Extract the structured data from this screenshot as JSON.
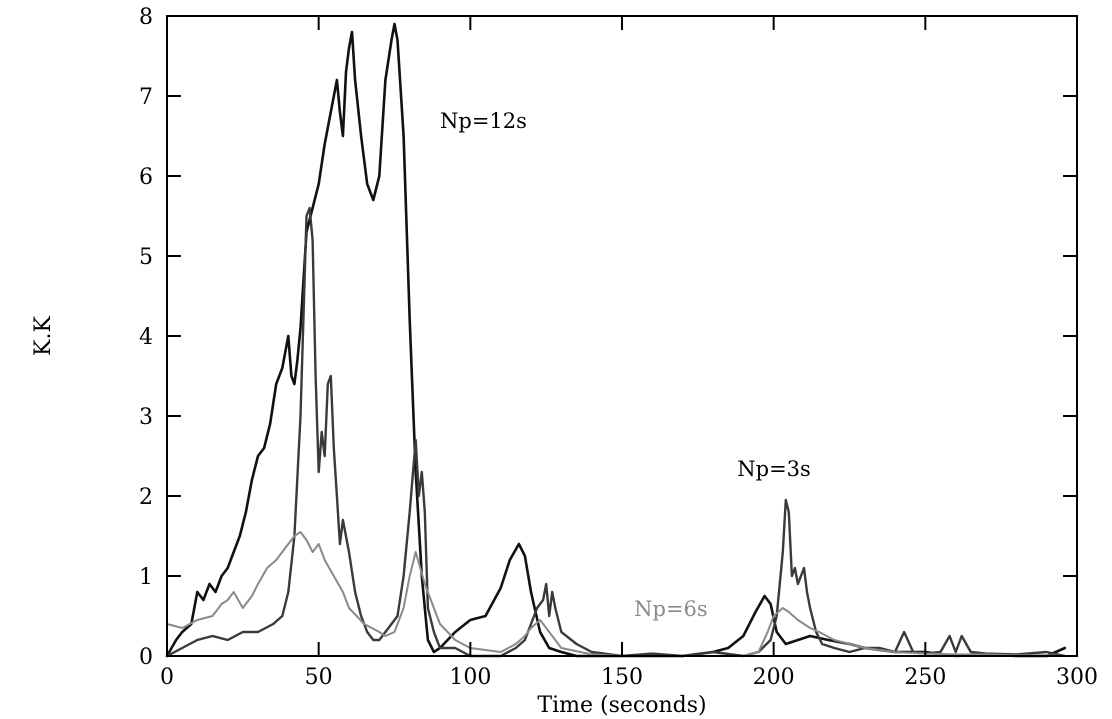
{
  "chart_data": {
    "type": "line",
    "title": "",
    "xlabel": "Time (seconds)",
    "ylabel": "K.K",
    "xlim": [
      0,
      300
    ],
    "ylim": [
      0,
      8
    ],
    "x_ticks": [
      0,
      50,
      100,
      150,
      200,
      250,
      300
    ],
    "y_ticks": [
      0,
      1,
      2,
      3,
      4,
      5,
      6,
      7,
      8
    ],
    "grid": false,
    "legend": "none",
    "annotations": [
      {
        "text": "Np=12s",
        "x": 90,
        "y": 6.6,
        "color": "#000000"
      },
      {
        "text": "Np=3s",
        "x": 188,
        "y": 2.25,
        "color": "#000000"
      },
      {
        "text": "Np=6s",
        "x": 154,
        "y": 0.5,
        "color": "#8a8a8a"
      }
    ],
    "series": [
      {
        "color": "#111111",
        "stroke_width": 2.6,
        "x": [
          0,
          3,
          5,
          8,
          10,
          12,
          14,
          16,
          18,
          20,
          22,
          24,
          26,
          28,
          30,
          32,
          34,
          36,
          38,
          40,
          41,
          42,
          43,
          44,
          46,
          48,
          50,
          52,
          54,
          56,
          57,
          58,
          59,
          60,
          61,
          62,
          64,
          66,
          68,
          70,
          72,
          74,
          75,
          76,
          78,
          80,
          82,
          84,
          85,
          86,
          88,
          90,
          95,
          100,
          105,
          110,
          113,
          116,
          118,
          120,
          123,
          126,
          130,
          135,
          140,
          150,
          160,
          170,
          180,
          185,
          190,
          194,
          197,
          199,
          201,
          204,
          208,
          212,
          218,
          225,
          230,
          240,
          250,
          260,
          270,
          280,
          290,
          296
        ],
        "y": [
          0.0,
          0.2,
          0.3,
          0.4,
          0.8,
          0.7,
          0.9,
          0.8,
          1.0,
          1.1,
          1.3,
          1.5,
          1.8,
          2.2,
          2.5,
          2.6,
          2.9,
          3.4,
          3.6,
          4.0,
          3.5,
          3.4,
          3.7,
          4.1,
          5.3,
          5.6,
          5.9,
          6.4,
          6.8,
          7.2,
          6.8,
          6.5,
          7.3,
          7.6,
          7.8,
          7.2,
          6.5,
          5.9,
          5.7,
          6.0,
          7.2,
          7.7,
          7.9,
          7.7,
          6.5,
          4.2,
          2.3,
          1.0,
          0.6,
          0.2,
          0.05,
          0.1,
          0.3,
          0.45,
          0.5,
          0.85,
          1.2,
          1.4,
          1.25,
          0.8,
          0.3,
          0.1,
          0.05,
          0.0,
          0.0,
          0.0,
          0.0,
          0.0,
          0.05,
          0.1,
          0.25,
          0.55,
          0.75,
          0.65,
          0.3,
          0.15,
          0.2,
          0.25,
          0.2,
          0.15,
          0.1,
          0.05,
          0.05,
          0.0,
          0.02,
          0.0,
          0.0,
          0.1
        ]
      },
      {
        "color": "#3a3a3a",
        "stroke_width": 2.4,
        "x": [
          0,
          5,
          10,
          15,
          20,
          25,
          30,
          35,
          38,
          40,
          42,
          44,
          46,
          47,
          48,
          49,
          50,
          51,
          52,
          53,
          54,
          55,
          56,
          57,
          58,
          60,
          62,
          64,
          66,
          68,
          70,
          72,
          74,
          76,
          78,
          80,
          82,
          83,
          84,
          85,
          86,
          88,
          90,
          95,
          100,
          110,
          115,
          118,
          120,
          122,
          124,
          125,
          126,
          127,
          128,
          130,
          135,
          140,
          150,
          160,
          170,
          180,
          190,
          195,
          199,
          201,
          203,
          204,
          205,
          206,
          207,
          208,
          210,
          211,
          212,
          214,
          216,
          220,
          225,
          230,
          235,
          240,
          243,
          246,
          250,
          255,
          258,
          260,
          262,
          265,
          270,
          280,
          290,
          296
        ],
        "y": [
          0.0,
          0.1,
          0.2,
          0.25,
          0.2,
          0.3,
          0.3,
          0.4,
          0.5,
          0.8,
          1.5,
          3.0,
          5.5,
          5.6,
          5.2,
          3.5,
          2.3,
          2.8,
          2.5,
          3.4,
          3.5,
          2.6,
          2.0,
          1.4,
          1.7,
          1.3,
          0.8,
          0.5,
          0.3,
          0.2,
          0.2,
          0.3,
          0.4,
          0.5,
          1.0,
          1.8,
          2.7,
          2.0,
          2.3,
          1.8,
          0.6,
          0.3,
          0.1,
          0.1,
          0.0,
          0.0,
          0.1,
          0.2,
          0.4,
          0.6,
          0.7,
          0.9,
          0.5,
          0.8,
          0.6,
          0.3,
          0.15,
          0.05,
          0.0,
          0.03,
          0.0,
          0.05,
          0.0,
          0.05,
          0.2,
          0.5,
          1.3,
          1.95,
          1.8,
          1.0,
          1.1,
          0.9,
          1.1,
          0.8,
          0.6,
          0.3,
          0.15,
          0.1,
          0.05,
          0.1,
          0.1,
          0.05,
          0.3,
          0.05,
          0.03,
          0.05,
          0.25,
          0.05,
          0.25,
          0.05,
          0.03,
          0.02,
          0.05,
          0.0
        ]
      },
      {
        "color": "#8a8a8a",
        "stroke_width": 2.0,
        "x": [
          0,
          5,
          10,
          15,
          18,
          20,
          22,
          25,
          28,
          30,
          33,
          36,
          40,
          42,
          44,
          46,
          48,
          50,
          52,
          55,
          58,
          60,
          65,
          70,
          72,
          75,
          78,
          80,
          82,
          85,
          88,
          90,
          95,
          100,
          110,
          115,
          118,
          120,
          123,
          126,
          128,
          130,
          140,
          150,
          170,
          190,
          195,
          198,
          200,
          203,
          205,
          208,
          212,
          215,
          220,
          230,
          240,
          250,
          260,
          270,
          280,
          290,
          296
        ],
        "y": [
          0.4,
          0.35,
          0.45,
          0.5,
          0.65,
          0.7,
          0.8,
          0.6,
          0.75,
          0.9,
          1.1,
          1.2,
          1.4,
          1.5,
          1.55,
          1.45,
          1.3,
          1.4,
          1.2,
          1.0,
          0.8,
          0.6,
          0.4,
          0.3,
          0.25,
          0.3,
          0.6,
          1.0,
          1.3,
          0.9,
          0.6,
          0.4,
          0.2,
          0.1,
          0.05,
          0.15,
          0.25,
          0.35,
          0.45,
          0.3,
          0.2,
          0.1,
          0.02,
          0.0,
          0.0,
          0.0,
          0.05,
          0.3,
          0.5,
          0.6,
          0.55,
          0.45,
          0.35,
          0.3,
          0.2,
          0.1,
          0.05,
          0.03,
          0.02,
          0.02,
          0.01,
          0.01,
          0.0
        ]
      }
    ]
  }
}
